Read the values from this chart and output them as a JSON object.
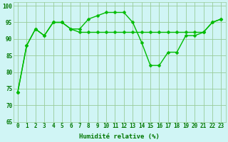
{
  "line1_y": [
    74,
    88,
    93,
    91,
    95,
    95,
    93,
    93,
    96,
    97,
    98,
    98,
    98,
    95,
    89,
    82,
    82,
    86,
    86,
    91,
    91,
    92,
    95,
    96
  ],
  "line2_y": [
    74,
    88,
    93,
    91,
    95,
    95,
    93,
    92,
    92,
    92,
    92,
    92,
    92,
    92,
    92,
    92,
    92,
    92,
    92,
    92,
    92,
    92,
    95,
    96
  ],
  "x": [
    0,
    1,
    2,
    3,
    4,
    5,
    6,
    7,
    8,
    9,
    10,
    11,
    12,
    13,
    14,
    15,
    16,
    17,
    18,
    19,
    20,
    21,
    22,
    23
  ],
  "line_color": "#00bb00",
  "markersize": 2.5,
  "linewidth": 1.0,
  "xlabel": "Humidité relative (%)",
  "ylim": [
    65,
    101
  ],
  "xlim": [
    -0.5,
    23.5
  ],
  "yticks": [
    65,
    70,
    75,
    80,
    85,
    90,
    95,
    100
  ],
  "xticks": [
    0,
    1,
    2,
    3,
    4,
    5,
    6,
    7,
    8,
    9,
    10,
    11,
    12,
    13,
    14,
    15,
    16,
    17,
    18,
    19,
    20,
    21,
    22,
    23
  ],
  "xtick_labels": [
    "0",
    "1",
    "2",
    "3",
    "4",
    "5",
    "6",
    "7",
    "8",
    "9",
    "10",
    "11",
    "12",
    "13",
    "14",
    "15",
    "16",
    "17",
    "18",
    "19",
    "20",
    "21",
    "22",
    "23"
  ],
  "background_color": "#d0f5f5",
  "grid_color": "#99cc99",
  "text_color": "#007700",
  "tick_fontsize": 5.5,
  "xlabel_fontsize": 6.5
}
